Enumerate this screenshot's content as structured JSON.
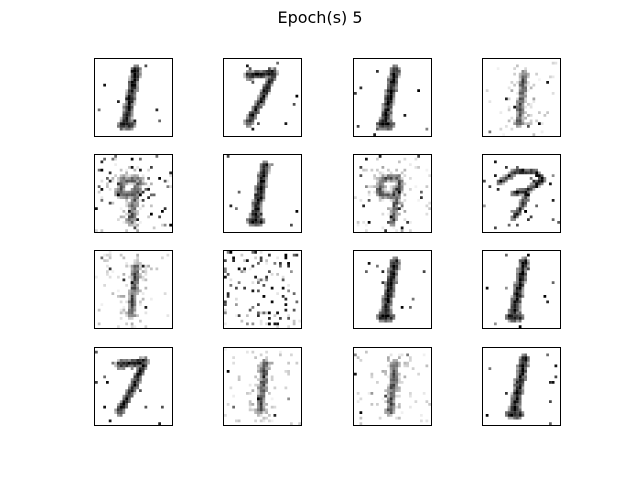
{
  "figure": {
    "title": "Epoch(s) 5",
    "ink_color": "#000000",
    "background_color": "#ffffff"
  },
  "samples": [
    {
      "style": "one"
    },
    {
      "style": "seven"
    },
    {
      "style": "one"
    },
    {
      "style": "faint-one"
    },
    {
      "style": "noisy-nine"
    },
    {
      "style": "one"
    },
    {
      "style": "nine"
    },
    {
      "style": "scribble"
    },
    {
      "style": "faint-one"
    },
    {
      "style": "noise"
    },
    {
      "style": "one"
    },
    {
      "style": "one"
    },
    {
      "style": "seven"
    },
    {
      "style": "faint-one"
    },
    {
      "style": "faint-one"
    },
    {
      "style": "one"
    }
  ]
}
